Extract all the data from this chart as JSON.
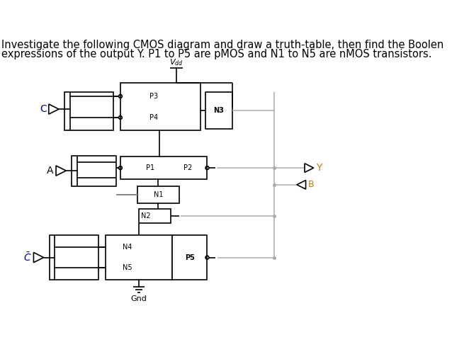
{
  "title_line1": "Investigate the following CMOS diagram and draw a truth-table, then find the Boolen",
  "title_line2": "expressions of the output Y. P1 to P5 are pMOS and N1 to N5 are nMOS transistors.",
  "bg_color": "#ffffff",
  "line_color": "#000000",
  "gray_color": "#aaaaaa",
  "orange_color": "#cc7700",
  "label_C": "C",
  "label_A": "A",
  "label_Y": "Y",
  "label_B": "B",
  "label_Gnd": "Gnd",
  "label_P1": "P1",
  "label_P2": "P2",
  "label_P3": "P3",
  "label_P4": "P4",
  "label_P5": "P5",
  "label_N1": "N1",
  "label_N2": "N2",
  "label_N3": "N3",
  "label_N4": "N4",
  "label_N5": "N5"
}
